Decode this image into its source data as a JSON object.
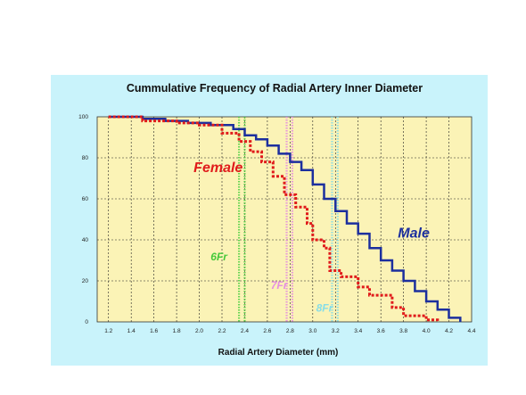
{
  "chart_data": {
    "type": "line",
    "title": "Cummulative Frequency of Radial Artery Inner Diameter",
    "xlabel": "Radial Artery Diameter (mm)",
    "ylabel": "",
    "xlim": [
      1.1,
      4.4
    ],
    "ylim": [
      0,
      100
    ],
    "x_ticks": [
      "1.2",
      "1.4",
      "1.6",
      "1.8",
      "2.0",
      "2.2",
      "2.4",
      "2.6",
      "2.8",
      "3.0",
      "3.2",
      "3.4",
      "3.6",
      "3.8",
      "4.0",
      "4.2",
      "4.4"
    ],
    "y_ticks": [
      "0",
      "20",
      "40",
      "60",
      "80",
      "100"
    ],
    "grid": true,
    "series": [
      {
        "name": "Male",
        "color": "#1c2f9e",
        "style": "solid",
        "points": [
          [
            1.2,
            100
          ],
          [
            1.5,
            100
          ],
          [
            1.5,
            99
          ],
          [
            1.7,
            99
          ],
          [
            1.7,
            98
          ],
          [
            1.9,
            98
          ],
          [
            1.9,
            97
          ],
          [
            2.1,
            97
          ],
          [
            2.1,
            96
          ],
          [
            2.3,
            96
          ],
          [
            2.3,
            94
          ],
          [
            2.4,
            94
          ],
          [
            2.4,
            91
          ],
          [
            2.5,
            91
          ],
          [
            2.5,
            89
          ],
          [
            2.6,
            89
          ],
          [
            2.6,
            86
          ],
          [
            2.7,
            86
          ],
          [
            2.7,
            82
          ],
          [
            2.8,
            82
          ],
          [
            2.8,
            78
          ],
          [
            2.9,
            78
          ],
          [
            2.9,
            74
          ],
          [
            3.0,
            74
          ],
          [
            3.0,
            67
          ],
          [
            3.1,
            67
          ],
          [
            3.1,
            60
          ],
          [
            3.2,
            60
          ],
          [
            3.2,
            54
          ],
          [
            3.3,
            54
          ],
          [
            3.3,
            48
          ],
          [
            3.4,
            48
          ],
          [
            3.4,
            43
          ],
          [
            3.5,
            43
          ],
          [
            3.5,
            36
          ],
          [
            3.6,
            36
          ],
          [
            3.6,
            30
          ],
          [
            3.7,
            30
          ],
          [
            3.7,
            25
          ],
          [
            3.8,
            25
          ],
          [
            3.8,
            20
          ],
          [
            3.9,
            20
          ],
          [
            3.9,
            15
          ],
          [
            4.0,
            15
          ],
          [
            4.0,
            10
          ],
          [
            4.1,
            10
          ],
          [
            4.1,
            6
          ],
          [
            4.2,
            6
          ],
          [
            4.2,
            2
          ],
          [
            4.3,
            2
          ],
          [
            4.3,
            0
          ]
        ]
      },
      {
        "name": "Female",
        "color": "#e01b1b",
        "style": "dotted",
        "points": [
          [
            1.2,
            100
          ],
          [
            1.5,
            100
          ],
          [
            1.5,
            98
          ],
          [
            1.8,
            98
          ],
          [
            1.8,
            97
          ],
          [
            2.0,
            97
          ],
          [
            2.0,
            96
          ],
          [
            2.2,
            96
          ],
          [
            2.2,
            92
          ],
          [
            2.35,
            92
          ],
          [
            2.35,
            88
          ],
          [
            2.45,
            88
          ],
          [
            2.45,
            83
          ],
          [
            2.55,
            83
          ],
          [
            2.55,
            78
          ],
          [
            2.65,
            78
          ],
          [
            2.65,
            71
          ],
          [
            2.75,
            71
          ],
          [
            2.75,
            62
          ],
          [
            2.85,
            62
          ],
          [
            2.85,
            56
          ],
          [
            2.95,
            56
          ],
          [
            2.95,
            48
          ],
          [
            3.0,
            48
          ],
          [
            3.0,
            40
          ],
          [
            3.1,
            40
          ],
          [
            3.1,
            36
          ],
          [
            3.15,
            36
          ],
          [
            3.15,
            25
          ],
          [
            3.25,
            25
          ],
          [
            3.25,
            22
          ],
          [
            3.4,
            22
          ],
          [
            3.4,
            17
          ],
          [
            3.5,
            17
          ],
          [
            3.5,
            13
          ],
          [
            3.7,
            13
          ],
          [
            3.7,
            7
          ],
          [
            3.8,
            7
          ],
          [
            3.8,
            3
          ],
          [
            4.0,
            3
          ],
          [
            4.0,
            1
          ],
          [
            4.1,
            1
          ],
          [
            4.1,
            0
          ]
        ]
      }
    ],
    "reference_lines": [
      {
        "x": 2.35,
        "color": "#58d24a"
      },
      {
        "x": 2.4,
        "color": "#58d24a"
      },
      {
        "x": 2.77,
        "color": "#e58fe0"
      },
      {
        "x": 2.82,
        "color": "#e58fe0"
      },
      {
        "x": 3.17,
        "color": "#86dde8"
      },
      {
        "x": 3.22,
        "color": "#86dde8"
      }
    ],
    "annotations": [
      {
        "text": "Female",
        "x": 1.95,
        "y": 73,
        "color": "#e01b1b",
        "size": "big"
      },
      {
        "text": "Male",
        "x": 3.75,
        "y": 41,
        "color": "#1c2f9e",
        "size": "big"
      },
      {
        "text": "6Fr",
        "x": 2.1,
        "y": 30,
        "color": "#45c93a",
        "size": "fr"
      },
      {
        "text": "7Fr",
        "x": 2.63,
        "y": 16,
        "color": "#e58fe0",
        "size": "fr"
      },
      {
        "text": "8Fr",
        "x": 3.03,
        "y": 5,
        "color": "#86dde8",
        "size": "fr"
      }
    ],
    "colors": {
      "panel_background": "#c9f3fb",
      "plot_background": "#fbf3b6",
      "grid": "#222222"
    }
  }
}
